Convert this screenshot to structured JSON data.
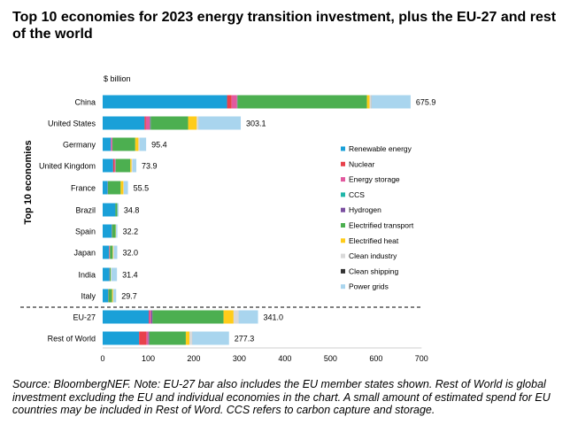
{
  "title": "Top 10 economies for 2023 energy transition investment, plus the EU-27 and rest of the world",
  "source_note": "Source: BloombergNEF. Note: EU-27 bar also includes the EU member states shown. Rest of World is global investment excluding the EU and individual economies in the chart. A small amount of estimated spend for EU countries may be included in Rest of Word. CCS refers to carbon capture and storage.",
  "chart_data": {
    "type": "bar",
    "orientation": "horizontal",
    "stacked": true,
    "unit_label": "$ billion",
    "ylabel": "Top 10 economies",
    "xlim": [
      0,
      700
    ],
    "xticks": [
      0,
      100,
      200,
      300,
      400,
      500,
      600,
      700
    ],
    "grid": false,
    "legend_position": "right",
    "categories": [
      "China",
      "United States",
      "Germany",
      "United Kingdom",
      "France",
      "Brazil",
      "Spain",
      "Japan",
      "India",
      "Italy",
      "EU-27",
      "Rest of World"
    ],
    "totals": [
      675.9,
      303.1,
      95.4,
      73.9,
      55.5,
      34.8,
      32.2,
      32.0,
      31.4,
      29.7,
      341.0,
      277.3
    ],
    "total_labels": [
      "675.9",
      "303.1",
      "95.4",
      "73.9",
      "55.5",
      "34.8",
      "32.2",
      "32.0",
      "31.4",
      "29.7",
      "341.0",
      "277.3"
    ],
    "series": [
      {
        "name": "Renewable energy",
        "color": "#1aa0d8",
        "values": [
          273,
          92,
          18,
          23,
          11,
          28,
          20,
          14,
          15,
          12,
          101,
          80
        ]
      },
      {
        "name": "Nuclear",
        "color": "#e8414b",
        "values": [
          10,
          3,
          0,
          3,
          0,
          0,
          0,
          1,
          0,
          0,
          1,
          16
        ]
      },
      {
        "name": "Energy storage",
        "color": "#e2599e",
        "values": [
          12,
          9,
          3,
          2,
          0.5,
          0,
          0.5,
          1,
          0.5,
          0.5,
          4,
          4
        ]
      },
      {
        "name": "CCS",
        "color": "#1fb6a8",
        "values": [
          0.5,
          1,
          0,
          0.5,
          0,
          0,
          0,
          0,
          0,
          0,
          0.3,
          0.5
        ]
      },
      {
        "name": "Hydrogen",
        "color": "#7b4fa0",
        "values": [
          0.5,
          0.5,
          0.5,
          0,
          0,
          0,
          0,
          0,
          0,
          0,
          3,
          2
        ]
      },
      {
        "name": "Electrified transport",
        "color": "#4caf50",
        "values": [
          284,
          82,
          50,
          32,
          28,
          4,
          8,
          6,
          2,
          8,
          156,
          80
        ]
      },
      {
        "name": "Electrified heat",
        "color": "#ffcc1a",
        "values": [
          6,
          19,
          7,
          3,
          6,
          0,
          0.5,
          1,
          0.5,
          2,
          22,
          8
        ]
      },
      {
        "name": "Clean industry",
        "color": "#d9d9d9",
        "values": [
          4,
          4,
          3,
          2,
          1,
          0,
          0.5,
          2,
          1,
          1,
          11,
          6
        ]
      },
      {
        "name": "Clean shipping",
        "color": "#333333",
        "values": [
          0.3,
          0.1,
          0,
          0,
          0,
          0,
          0,
          0,
          0,
          0,
          0.1,
          0.2
        ]
      },
      {
        "name": "Power grids",
        "color": "#a9d5ee",
        "values": [
          85.6,
          92.5,
          13.9,
          8.4,
          9,
          2.8,
          2.7,
          7,
          12.4,
          6.2,
          42.6,
          80.6
        ]
      }
    ]
  }
}
